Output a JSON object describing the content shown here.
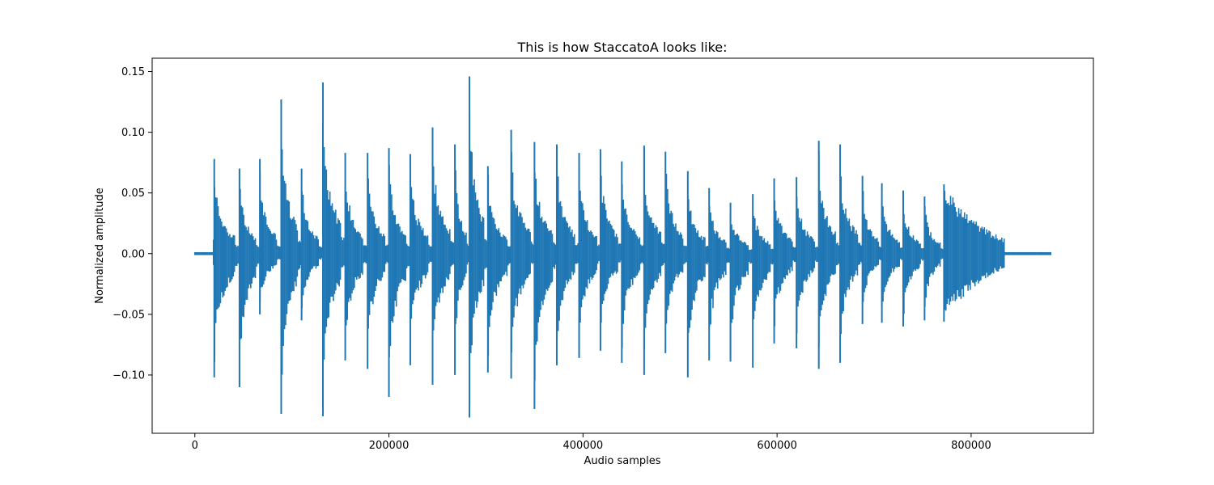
{
  "chart_data": {
    "type": "line",
    "title": "This is how StaccatoA looks like:",
    "xlabel": "Audio samples",
    "ylabel": "Normalized amplitude",
    "xlim": [
      -44000,
      926000
    ],
    "ylim": [
      -0.148,
      0.161
    ],
    "xticks": [
      0,
      200000,
      400000,
      600000,
      800000
    ],
    "xtick_labels": [
      "0",
      "200000",
      "400000",
      "600000",
      "800000"
    ],
    "yticks": [
      -0.1,
      -0.05,
      0.0,
      0.05,
      0.1,
      0.15
    ],
    "ytick_labels": [
      "−0.10",
      "−0.05",
      "0.00",
      "0.05",
      "0.10",
      "0.15"
    ],
    "grid": false,
    "line_color": "#1f77b4",
    "series": [
      {
        "signal_range": [
          0,
          882000
        ],
        "silence_before": 19000,
        "silence_after": 830000,
        "onsets": [
          {
            "x": 20000,
            "max": 0.078,
            "min": -0.102
          },
          {
            "x": 46000,
            "max": 0.07,
            "min": -0.11
          },
          {
            "x": 67000,
            "max": 0.078,
            "min": -0.05
          },
          {
            "x": 89000,
            "max": 0.127,
            "min": -0.132
          },
          {
            "x": 110000,
            "max": 0.07,
            "min": -0.055
          },
          {
            "x": 132000,
            "max": 0.141,
            "min": -0.134
          },
          {
            "x": 155000,
            "max": 0.083,
            "min": -0.088
          },
          {
            "x": 178000,
            "max": 0.083,
            "min": -0.095
          },
          {
            "x": 200000,
            "max": 0.087,
            "min": -0.118
          },
          {
            "x": 222000,
            "max": 0.082,
            "min": -0.092
          },
          {
            "x": 245000,
            "max": 0.104,
            "min": -0.108
          },
          {
            "x": 268000,
            "max": 0.09,
            "min": -0.1
          },
          {
            "x": 283000,
            "max": 0.146,
            "min": -0.135
          },
          {
            "x": 302000,
            "max": 0.072,
            "min": -0.098
          },
          {
            "x": 326000,
            "max": 0.102,
            "min": -0.103
          },
          {
            "x": 350000,
            "max": 0.092,
            "min": -0.128
          },
          {
            "x": 373000,
            "max": 0.09,
            "min": -0.092
          },
          {
            "x": 396000,
            "max": 0.083,
            "min": -0.086
          },
          {
            "x": 418000,
            "max": 0.086,
            "min": -0.08
          },
          {
            "x": 440000,
            "max": 0.076,
            "min": -0.09
          },
          {
            "x": 463000,
            "max": 0.089,
            "min": -0.1
          },
          {
            "x": 485000,
            "max": 0.084,
            "min": -0.082
          },
          {
            "x": 508000,
            "max": 0.068,
            "min": -0.102
          },
          {
            "x": 530000,
            "max": 0.054,
            "min": -0.088
          },
          {
            "x": 552000,
            "max": 0.042,
            "min": -0.089
          },
          {
            "x": 575000,
            "max": 0.049,
            "min": -0.094
          },
          {
            "x": 597000,
            "max": 0.062,
            "min": -0.074
          },
          {
            "x": 620000,
            "max": 0.063,
            "min": -0.078
          },
          {
            "x": 643000,
            "max": 0.093,
            "min": -0.095
          },
          {
            "x": 665000,
            "max": 0.09,
            "min": -0.09
          },
          {
            "x": 688000,
            "max": 0.064,
            "min": -0.058
          },
          {
            "x": 708000,
            "max": 0.058,
            "min": -0.057
          },
          {
            "x": 730000,
            "max": 0.052,
            "min": -0.06
          },
          {
            "x": 752000,
            "max": 0.047,
            "min": -0.055
          },
          {
            "x": 772000,
            "max": 0.057,
            "min": -0.056
          }
        ]
      }
    ]
  }
}
